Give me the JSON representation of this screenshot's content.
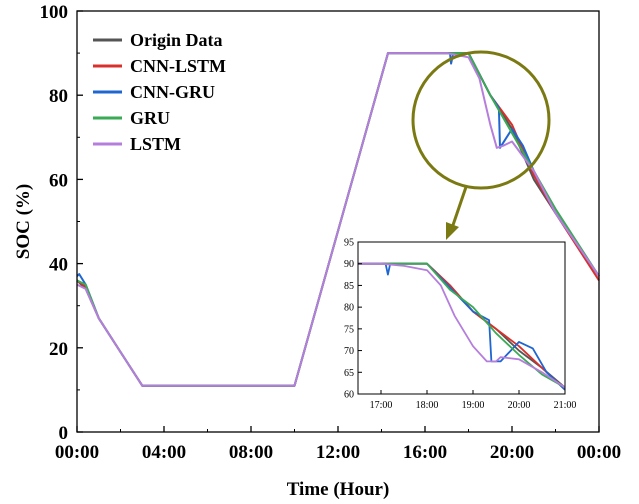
{
  "chart_data": [
    {
      "type": "line",
      "title": "",
      "xlabel": "Time (Hour)",
      "ylabel": "SOC (%)",
      "xlim": [
        0,
        24
      ],
      "ylim": [
        0,
        100
      ],
      "x_ticks": [
        0,
        4,
        8,
        12,
        16,
        20,
        24
      ],
      "x_tick_labels": [
        "00:00",
        "04:00",
        "08:00",
        "12:00",
        "16:00",
        "20:00",
        "00:00"
      ],
      "y_ticks": [
        0,
        20,
        40,
        60,
        80,
        100
      ],
      "y_tick_labels": [
        "0",
        "20",
        "40",
        "60",
        "80",
        "100"
      ],
      "grid": false,
      "legend_position": "top-left",
      "series": [
        {
          "name": "Origin Data",
          "color": "#555555",
          "x": [
            0,
            0.4,
            1,
            2,
            3,
            10,
            14.3,
            16,
            18,
            19,
            20,
            21,
            22,
            24
          ],
          "y": [
            36,
            34,
            27,
            19,
            11,
            11,
            90,
            90,
            90,
            80,
            72,
            60,
            52,
            37
          ]
        },
        {
          "name": "CNN-LSTM",
          "color": "#d9302c",
          "x": [
            0,
            0.4,
            1,
            2,
            3,
            10,
            14.3,
            16,
            18,
            19,
            20,
            21,
            22,
            24
          ],
          "y": [
            36,
            34.5,
            27,
            19,
            11,
            11,
            90,
            90,
            90,
            80,
            73,
            61,
            52,
            36
          ]
        },
        {
          "name": "CNN-GRU",
          "color": "#1f66d1",
          "x": [
            0,
            0.1,
            0.4,
            1,
            2,
            3,
            10,
            14.3,
            16,
            17.15,
            17.2,
            17.3,
            18,
            19,
            19.4,
            19.45,
            20,
            20.5,
            21,
            22,
            24
          ],
          "y": [
            37,
            37.5,
            35,
            27,
            19,
            11,
            11,
            90,
            90,
            90,
            87.5,
            90,
            90,
            80,
            77,
            67.5,
            72,
            68,
            62,
            52,
            37
          ]
        },
        {
          "name": "GRU",
          "color": "#3aaa55",
          "x": [
            0,
            0.4,
            1,
            2,
            3,
            10,
            14.3,
            16,
            18,
            19,
            20,
            21,
            22,
            24
          ],
          "y": [
            36,
            35,
            27,
            19,
            11,
            11,
            90,
            90,
            90,
            80,
            71,
            62,
            53,
            37
          ]
        },
        {
          "name": "LSTM",
          "color": "#b57edc",
          "x": [
            0,
            0.4,
            1,
            2,
            3,
            10,
            14.3,
            16,
            17,
            18,
            18.5,
            19,
            19.3,
            19.6,
            20,
            21,
            22,
            24
          ],
          "y": [
            35,
            34,
            27,
            19,
            11,
            11,
            90,
            90,
            90,
            89,
            84,
            73,
            67.5,
            68,
            69,
            62,
            52,
            37
          ]
        }
      ]
    },
    {
      "type": "line",
      "title": "",
      "xlabel": "",
      "ylabel": "",
      "xlim": [
        16.5,
        21
      ],
      "ylim": [
        60,
        95
      ],
      "x_ticks": [
        17,
        18,
        19,
        20,
        21
      ],
      "x_tick_labels": [
        "17:00",
        "18:00",
        "19:00",
        "20:00",
        "21:00"
      ],
      "y_ticks": [
        60,
        65,
        70,
        75,
        80,
        85,
        90,
        95
      ],
      "y_tick_labels": [
        "60",
        "65",
        "70",
        "75",
        "80",
        "85",
        "90",
        "95"
      ],
      "grid": false,
      "series": [
        {
          "color": "#555555",
          "x": [
            16.5,
            18,
            18.5,
            19,
            19.5,
            20,
            20.5,
            21
          ],
          "y": [
            90,
            90,
            85,
            79,
            75,
            70,
            66,
            61.5
          ]
        },
        {
          "color": "#d9302c",
          "x": [
            16.5,
            18,
            18.5,
            19,
            19.5,
            20,
            20.5,
            21
          ],
          "y": [
            90,
            90,
            85,
            79,
            75,
            71,
            66,
            61
          ]
        },
        {
          "color": "#1f66d1",
          "x": [
            16.5,
            17.1,
            17.15,
            17.2,
            18,
            18.5,
            19,
            19.35,
            19.4,
            19.6,
            20,
            20.3,
            20.6,
            21
          ],
          "y": [
            90,
            90,
            87.5,
            90,
            90,
            84.5,
            79,
            77,
            67.5,
            67.5,
            72,
            70.5,
            65,
            61
          ]
        },
        {
          "color": "#3aaa55",
          "x": [
            16.5,
            18,
            18.5,
            19,
            19.5,
            20,
            20.5,
            21
          ],
          "y": [
            90,
            90,
            84,
            80,
            74,
            69,
            64.5,
            61.5
          ]
        },
        {
          "color": "#b57edc",
          "x": [
            16.5,
            17,
            17.5,
            18,
            18.3,
            18.6,
            19,
            19.3,
            19.5,
            19.6,
            20,
            20.5,
            21
          ],
          "y": [
            90,
            90,
            89.5,
            88.5,
            85,
            78,
            71,
            67.5,
            67.5,
            68.5,
            68,
            65,
            61.5
          ]
        }
      ]
    }
  ]
}
